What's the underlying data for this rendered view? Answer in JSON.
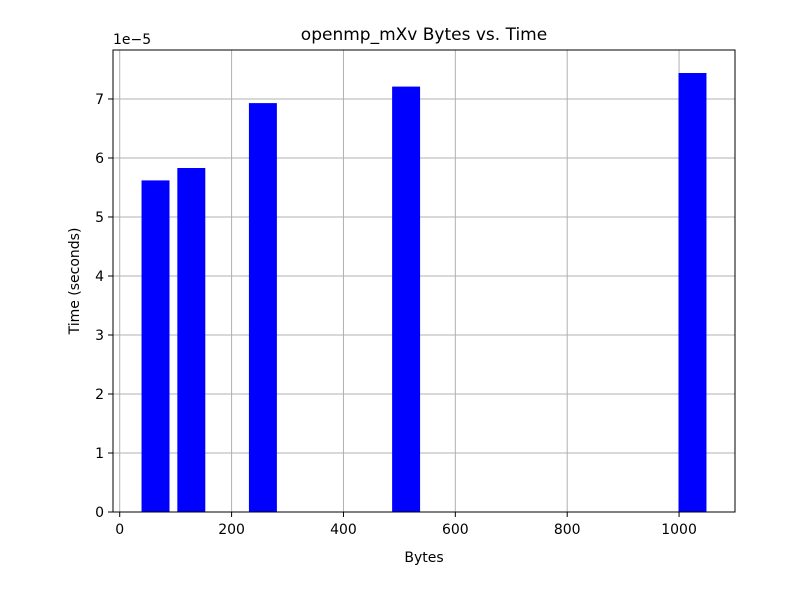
{
  "chart_data": {
    "type": "bar",
    "title": "openmp_mXv Bytes vs. Time",
    "xlabel": "Bytes",
    "ylabel": "Time (seconds)",
    "y_offset_label": "1e−5",
    "x": [
      64,
      128,
      256,
      512,
      1024
    ],
    "values": [
      5.62e-05,
      5.83e-05,
      6.93e-05,
      7.21e-05,
      7.44e-05
    ],
    "bar_width": 50,
    "color": "#0000ff",
    "xlim": [
      -12,
      1100
    ],
    "ylim": [
      0,
      7.83e-05
    ],
    "xticks": [
      0,
      200,
      400,
      600,
      800,
      1000
    ],
    "xtick_labels": [
      "0",
      "200",
      "400",
      "600",
      "800",
      "1000"
    ],
    "yticks": [
      0,
      1e-05,
      2e-05,
      3e-05,
      4e-05,
      5e-05,
      6e-05,
      7e-05
    ],
    "ytick_labels": [
      "0",
      "1",
      "2",
      "3",
      "4",
      "5",
      "6",
      "7"
    ],
    "grid": true
  }
}
